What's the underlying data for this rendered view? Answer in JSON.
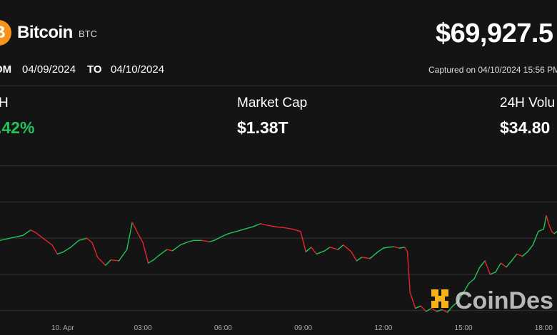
{
  "header": {
    "coin_icon": "bitcoin-icon",
    "coin_symbol_glyph": "₿",
    "coin_name": "Bitcoin",
    "coin_ticker": "BTC",
    "price": "$69,927.5",
    "from_label": "OM",
    "from_date": "04/09/2024",
    "to_label": "TO",
    "to_date": "04/10/2024",
    "captured": "Captured on 04/10/2024 15:56 PM"
  },
  "stats": [
    {
      "label": "H",
      "value": ".42%"
    },
    {
      "label": "Market Cap",
      "value": "$1.38T"
    },
    {
      "label": "24H Volu",
      "value": "$34.80"
    }
  ],
  "watermark": {
    "text": "CoinDes",
    "icon": "coindesk-logo-icon"
  },
  "colors": {
    "background": "#141414",
    "up": "#20c45a",
    "down": "#e8242c",
    "accent": "#f7931a"
  },
  "chart_data": {
    "type": "line",
    "title": "",
    "xlabel": "",
    "ylabel": "",
    "x_ticks": [
      {
        "label": "10. Apr",
        "h": 0
      },
      {
        "label": "03:00",
        "h": 3
      },
      {
        "label": "06:00",
        "h": 6
      },
      {
        "label": "09:00",
        "h": 9
      },
      {
        "label": "12:00",
        "h": 12
      },
      {
        "label": "15:00",
        "h": 15
      },
      {
        "label": "18:00",
        "h": 18
      }
    ],
    "xlim": [
      -2.35,
      18.5
    ],
    "ylim": [
      67500,
      71000
    ],
    "gridlines": [
      67600,
      68400,
      69200,
      70000,
      70800
    ],
    "grid": true,
    "legend": false,
    "series_color_rule": "green when rising, red when falling",
    "points": [
      [
        -2.35,
        69150
      ],
      [
        -1.9,
        69210
      ],
      [
        -1.5,
        69260
      ],
      [
        -1.2,
        69380
      ],
      [
        -1.0,
        69320
      ],
      [
        -0.7,
        69180
      ],
      [
        -0.4,
        69050
      ],
      [
        -0.2,
        68850
      ],
      [
        0.0,
        68890
      ],
      [
        0.3,
        69000
      ],
      [
        0.6,
        69150
      ],
      [
        0.9,
        69200
      ],
      [
        1.1,
        69100
      ],
      [
        1.3,
        68780
      ],
      [
        1.6,
        68600
      ],
      [
        1.8,
        68720
      ],
      [
        2.1,
        68700
      ],
      [
        2.4,
        68950
      ],
      [
        2.6,
        69550
      ],
      [
        2.8,
        69320
      ],
      [
        3.0,
        69100
      ],
      [
        3.2,
        68650
      ],
      [
        3.4,
        68720
      ],
      [
        3.6,
        68820
      ],
      [
        3.9,
        68950
      ],
      [
        4.1,
        68920
      ],
      [
        4.4,
        69050
      ],
      [
        4.7,
        69120
      ],
      [
        4.9,
        69150
      ],
      [
        5.2,
        69150
      ],
      [
        5.5,
        69120
      ],
      [
        5.7,
        69160
      ],
      [
        6.0,
        69250
      ],
      [
        6.2,
        69300
      ],
      [
        6.5,
        69350
      ],
      [
        6.8,
        69400
      ],
      [
        7.1,
        69450
      ],
      [
        7.4,
        69520
      ],
      [
        7.7,
        69480
      ],
      [
        8.0,
        69450
      ],
      [
        8.3,
        69430
      ],
      [
        8.6,
        69400
      ],
      [
        8.9,
        69350
      ],
      [
        9.1,
        68900
      ],
      [
        9.3,
        69000
      ],
      [
        9.5,
        68850
      ],
      [
        9.8,
        68920
      ],
      [
        10.0,
        69000
      ],
      [
        10.3,
        68950
      ],
      [
        10.5,
        69050
      ],
      [
        10.8,
        68900
      ],
      [
        11.0,
        68700
      ],
      [
        11.2,
        68780
      ],
      [
        11.5,
        68750
      ],
      [
        11.8,
        68900
      ],
      [
        12.0,
        68980
      ],
      [
        12.2,
        69000
      ],
      [
        12.4,
        69010
      ],
      [
        12.6,
        68980
      ],
      [
        12.8,
        69000
      ],
      [
        12.9,
        68900
      ],
      [
        13.0,
        68000
      ],
      [
        13.2,
        67650
      ],
      [
        13.4,
        67700
      ],
      [
        13.6,
        67580
      ],
      [
        13.8,
        67650
      ],
      [
        14.0,
        67580
      ],
      [
        14.2,
        67620
      ],
      [
        14.4,
        67560
      ],
      [
        14.6,
        67700
      ],
      [
        14.8,
        67800
      ],
      [
        15.0,
        68000
      ],
      [
        15.2,
        68200
      ],
      [
        15.4,
        68300
      ],
      [
        15.6,
        68550
      ],
      [
        15.8,
        68700
      ],
      [
        16.0,
        68400
      ],
      [
        16.2,
        68450
      ],
      [
        16.4,
        68650
      ],
      [
        16.6,
        68560
      ],
      [
        16.8,
        68700
      ],
      [
        17.0,
        68850
      ],
      [
        17.2,
        68800
      ],
      [
        17.4,
        68900
      ],
      [
        17.6,
        69050
      ],
      [
        17.8,
        69350
      ],
      [
        18.0,
        69400
      ],
      [
        18.1,
        69700
      ],
      [
        18.2,
        69500
      ],
      [
        18.3,
        69350
      ],
      [
        18.4,
        69300
      ],
      [
        18.5,
        69350
      ]
    ]
  }
}
